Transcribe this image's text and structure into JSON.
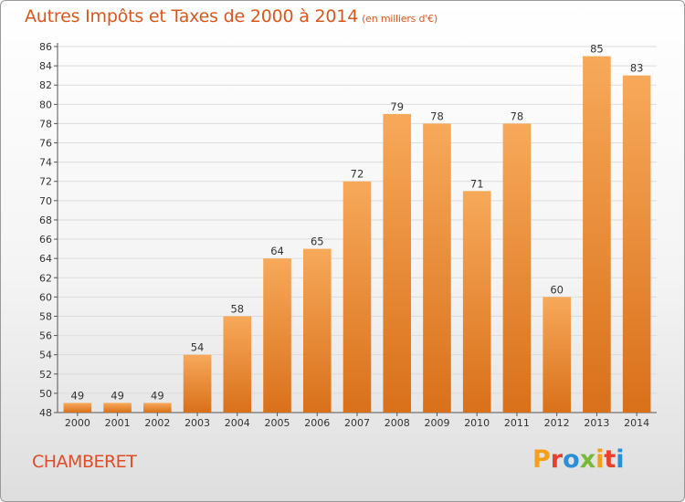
{
  "header": {
    "title": "Autres Impôts et Taxes de 2000 à 2014",
    "unit": "(en milliers d'€)"
  },
  "footer": {
    "commune": "CHAMBERET",
    "logo": "Proxiti",
    "logo_colors": [
      "#f5a01a",
      "#e8402a",
      "#2a8fd6",
      "#7ab83a",
      "#f5a01a",
      "#e8402a",
      "#2a8fd6"
    ]
  },
  "colors": {
    "bar_top": "#f7a95a",
    "bar_bottom": "#d9701a",
    "grid": "#dcdcdc",
    "axis": "#555555",
    "title": "#d9571b"
  },
  "chart_data": {
    "type": "bar",
    "title": "Autres Impôts et Taxes de 2000 à 2014",
    "subtitle": "(en milliers d'€)",
    "xlabel": "",
    "ylabel": "",
    "categories": [
      "2000",
      "2001",
      "2002",
      "2003",
      "2004",
      "2005",
      "2006",
      "2007",
      "2008",
      "2009",
      "2010",
      "2011",
      "2012",
      "2013",
      "2014"
    ],
    "values": [
      49,
      49,
      49,
      54,
      58,
      64,
      65,
      72,
      79,
      78,
      71,
      78,
      60,
      85,
      83
    ],
    "ylim": [
      48,
      86
    ],
    "yticks": [
      48,
      50,
      52,
      54,
      56,
      58,
      60,
      62,
      64,
      66,
      68,
      70,
      72,
      74,
      76,
      78,
      80,
      82,
      84,
      86
    ],
    "grid": true,
    "data_labels": true
  }
}
